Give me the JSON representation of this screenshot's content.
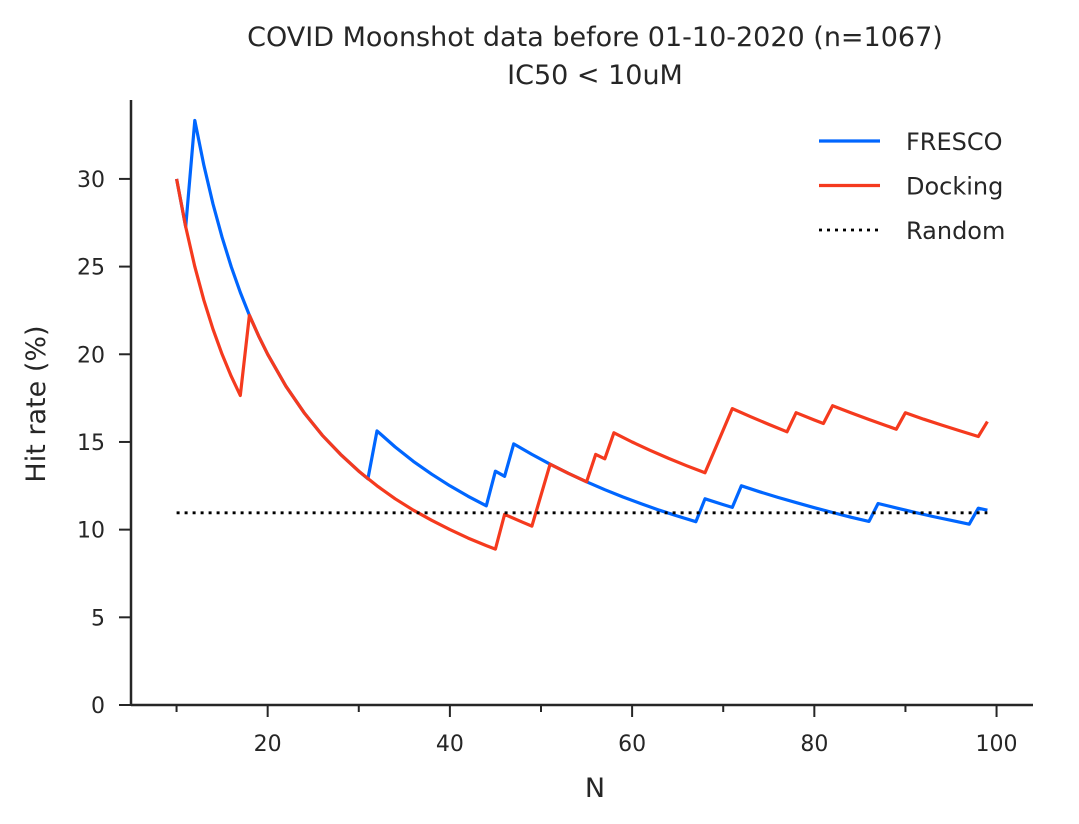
{
  "chart_data": {
    "type": "line",
    "title": "COVID Moonshot data before 01-10-2020 (n=1067)",
    "subtitle": "IC50 < 10uM",
    "xlabel": "N",
    "ylabel": "Hit rate (%)",
    "xlim": [
      5,
      104
    ],
    "ylim": [
      0,
      34.5
    ],
    "xticks_major": [
      20,
      40,
      60,
      80,
      100
    ],
    "xticks_minor": [
      10,
      30,
      50,
      70,
      90
    ],
    "yticks": [
      0,
      5,
      10,
      15,
      20,
      25,
      30
    ],
    "grid": false,
    "legend_position": "top-right",
    "series": [
      {
        "name": "FRESCO",
        "color": "#0066ff",
        "style": "solid",
        "points": [
          [
            10,
            30.0
          ],
          [
            11,
            27.27
          ],
          [
            12,
            33.33
          ],
          [
            13,
            30.77
          ],
          [
            14,
            28.57
          ],
          [
            15,
            26.67
          ],
          [
            16,
            25.0
          ],
          [
            17,
            23.53
          ],
          [
            18,
            22.22
          ],
          [
            19,
            21.05
          ],
          [
            20,
            20.0
          ],
          [
            22,
            18.18
          ],
          [
            24,
            16.67
          ],
          [
            26,
            15.38
          ],
          [
            28,
            14.29
          ],
          [
            30,
            13.33
          ],
          [
            31,
            12.9
          ],
          [
            32,
            15.63
          ],
          [
            34,
            14.71
          ],
          [
            36,
            13.89
          ],
          [
            38,
            13.16
          ],
          [
            40,
            12.5
          ],
          [
            42,
            11.9
          ],
          [
            44,
            11.36
          ],
          [
            45,
            13.33
          ],
          [
            46,
            13.04
          ],
          [
            47,
            14.89
          ],
          [
            49,
            14.29
          ],
          [
            51,
            13.73
          ],
          [
            53,
            13.21
          ],
          [
            55,
            12.73
          ],
          [
            57,
            12.28
          ],
          [
            59,
            11.86
          ],
          [
            61,
            11.48
          ],
          [
            63,
            11.11
          ],
          [
            65,
            10.77
          ],
          [
            67,
            10.45
          ],
          [
            68,
            11.76
          ],
          [
            70,
            11.43
          ],
          [
            71,
            11.27
          ],
          [
            72,
            12.5
          ],
          [
            74,
            12.16
          ],
          [
            76,
            11.84
          ],
          [
            78,
            11.54
          ],
          [
            80,
            11.25
          ],
          [
            82,
            10.98
          ],
          [
            84,
            10.71
          ],
          [
            86,
            10.47
          ],
          [
            87,
            11.49
          ],
          [
            89,
            11.24
          ],
          [
            91,
            10.99
          ],
          [
            93,
            10.75
          ],
          [
            95,
            10.53
          ],
          [
            97,
            10.31
          ],
          [
            98,
            11.22
          ],
          [
            99,
            11.11
          ]
        ]
      },
      {
        "name": "Docking",
        "color": "#f53a1e",
        "style": "solid",
        "points": [
          [
            10,
            30.0
          ],
          [
            11,
            27.27
          ],
          [
            12,
            25.0
          ],
          [
            13,
            23.08
          ],
          [
            14,
            21.43
          ],
          [
            15,
            20.0
          ],
          [
            16,
            18.75
          ],
          [
            17,
            17.65
          ],
          [
            18,
            22.22
          ],
          [
            19,
            21.05
          ],
          [
            20,
            20.0
          ],
          [
            22,
            18.18
          ],
          [
            24,
            16.67
          ],
          [
            26,
            15.38
          ],
          [
            28,
            14.29
          ],
          [
            30,
            13.33
          ],
          [
            32,
            12.5
          ],
          [
            34,
            11.76
          ],
          [
            36,
            11.11
          ],
          [
            38,
            10.53
          ],
          [
            40,
            10.0
          ],
          [
            42,
            9.52
          ],
          [
            44,
            9.09
          ],
          [
            45,
            8.89
          ],
          [
            46,
            10.87
          ],
          [
            48,
            10.42
          ],
          [
            49,
            10.2
          ],
          [
            51,
            13.73
          ],
          [
            53,
            13.21
          ],
          [
            55,
            12.73
          ],
          [
            56,
            14.29
          ],
          [
            57,
            14.04
          ],
          [
            58,
            15.52
          ],
          [
            60,
            15.0
          ],
          [
            62,
            14.52
          ],
          [
            64,
            14.06
          ],
          [
            66,
            13.64
          ],
          [
            68,
            13.24
          ],
          [
            71,
            16.9
          ],
          [
            73,
            16.44
          ],
          [
            75,
            16.0
          ],
          [
            77,
            15.58
          ],
          [
            78,
            16.67
          ],
          [
            80,
            16.25
          ],
          [
            81,
            16.05
          ],
          [
            82,
            17.07
          ],
          [
            84,
            16.67
          ],
          [
            86,
            16.28
          ],
          [
            88,
            15.91
          ],
          [
            89,
            15.73
          ],
          [
            90,
            16.67
          ],
          [
            92,
            16.3
          ],
          [
            94,
            15.96
          ],
          [
            96,
            15.63
          ],
          [
            98,
            15.31
          ],
          [
            99,
            16.16
          ]
        ]
      },
      {
        "name": "Random",
        "color": "#000000",
        "style": "dotted",
        "points": [
          [
            10,
            10.96
          ],
          [
            99,
            10.96
          ]
        ]
      }
    ]
  }
}
